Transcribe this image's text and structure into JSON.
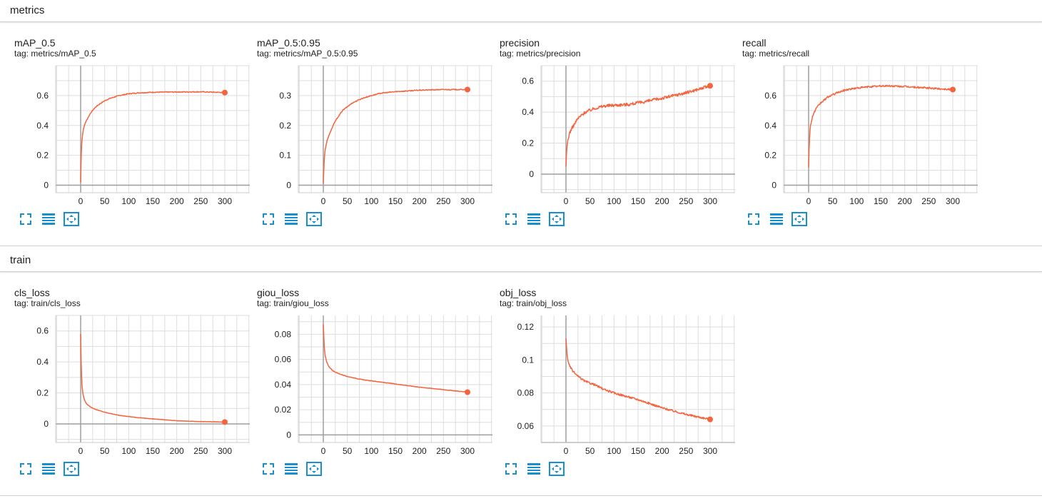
{
  "colors": {
    "line": "#f4643f",
    "grid": "#dddddd",
    "axis": "#9e9e9e",
    "icon": "#1a8fd0"
  },
  "icons": {
    "expand": "fullscreen-icon",
    "toggle_log": "lines-icon",
    "fit": "fit-domain-icon"
  },
  "sections": [
    {
      "name": "metrics",
      "charts": [
        0,
        1,
        2,
        3
      ]
    },
    {
      "name": "train",
      "charts": [
        4,
        5,
        6
      ]
    }
  ],
  "chart_data": [
    {
      "type": "line",
      "title": "mAP_0.5",
      "tag": "tag: metrics/mAP_0.5",
      "xlim": [
        -52,
        352
      ],
      "ylim": [
        -0.05,
        0.8
      ],
      "xticks": [
        0,
        50,
        100,
        150,
        200,
        250,
        300
      ],
      "yticks": [
        0,
        0.2,
        0.4,
        0.6
      ],
      "ytick_labels": [
        "0",
        "0.2",
        "0.4",
        "0.6"
      ],
      "noise": 0.003,
      "series": [
        {
          "name": "mAP_0.5",
          "x": [
            0,
            1,
            2,
            4,
            6,
            10,
            15,
            20,
            30,
            40,
            50,
            60,
            80,
            100,
            120,
            150,
            200,
            250,
            300
          ],
          "y": [
            0.02,
            0.18,
            0.27,
            0.34,
            0.38,
            0.42,
            0.45,
            0.48,
            0.52,
            0.545,
            0.565,
            0.58,
            0.6,
            0.612,
            0.618,
            0.622,
            0.624,
            0.625,
            0.62
          ]
        }
      ]
    },
    {
      "type": "line",
      "title": "mAP_0.5:0.95",
      "tag": "tag: metrics/mAP_0.5:0.95",
      "xlim": [
        -52,
        352
      ],
      "ylim": [
        -0.025,
        0.4
      ],
      "xticks": [
        0,
        50,
        100,
        150,
        200,
        250,
        300
      ],
      "yticks": [
        0,
        0.1,
        0.2,
        0.3
      ],
      "ytick_labels": [
        "0",
        "0.1",
        "0.2",
        "0.3"
      ],
      "noise": 0.0015,
      "series": [
        {
          "name": "mAP_0.5:0.95",
          "x": [
            0,
            1,
            2,
            4,
            8,
            15,
            25,
            40,
            60,
            80,
            100,
            120,
            150,
            200,
            250,
            300
          ],
          "y": [
            0.005,
            0.05,
            0.09,
            0.12,
            0.15,
            0.18,
            0.215,
            0.25,
            0.275,
            0.29,
            0.3,
            0.308,
            0.313,
            0.318,
            0.32,
            0.32
          ]
        }
      ]
    },
    {
      "type": "line",
      "title": "precision",
      "tag": "tag: metrics/precision",
      "xlim": [
        -52,
        352
      ],
      "ylim": [
        -0.12,
        0.7
      ],
      "xticks": [
        0,
        50,
        100,
        150,
        200,
        250,
        300
      ],
      "yticks": [
        0,
        0.2,
        0.4,
        0.6
      ],
      "ytick_labels": [
        "0",
        "0.2",
        "0.4",
        "0.6"
      ],
      "noise": 0.01,
      "series": [
        {
          "name": "precision",
          "x": [
            0,
            1,
            2,
            4,
            8,
            15,
            25,
            40,
            60,
            80,
            100,
            130,
            160,
            200,
            250,
            300
          ],
          "y": [
            0.05,
            0.12,
            0.17,
            0.22,
            0.27,
            0.31,
            0.36,
            0.4,
            0.425,
            0.44,
            0.445,
            0.45,
            0.465,
            0.49,
            0.525,
            0.57
          ]
        }
      ]
    },
    {
      "type": "line",
      "title": "recall",
      "tag": "tag: metrics/recall",
      "xlim": [
        -52,
        352
      ],
      "ylim": [
        -0.05,
        0.8
      ],
      "xticks": [
        0,
        50,
        100,
        150,
        200,
        250,
        300
      ],
      "yticks": [
        0,
        0.2,
        0.4,
        0.6
      ],
      "ytick_labels": [
        "0",
        "0.2",
        "0.4",
        "0.6"
      ],
      "noise": 0.006,
      "series": [
        {
          "name": "recall",
          "x": [
            0,
            1,
            2,
            4,
            8,
            15,
            25,
            40,
            60,
            80,
            100,
            130,
            160,
            200,
            250,
            300
          ],
          "y": [
            0.12,
            0.25,
            0.33,
            0.4,
            0.46,
            0.51,
            0.55,
            0.59,
            0.62,
            0.64,
            0.65,
            0.66,
            0.665,
            0.66,
            0.65,
            0.64
          ]
        }
      ]
    },
    {
      "type": "line",
      "title": "cls_loss",
      "tag": "tag: train/cls_loss",
      "xlim": [
        -52,
        352
      ],
      "ylim": [
        -0.12,
        0.7
      ],
      "xticks": [
        0,
        50,
        100,
        150,
        200,
        250,
        300
      ],
      "yticks": [
        0,
        0.2,
        0.4,
        0.6
      ],
      "ytick_labels": [
        "0",
        "0.2",
        "0.4",
        "0.6"
      ],
      "noise": 0.001,
      "series": [
        {
          "name": "cls_loss",
          "x": [
            0,
            1,
            2,
            3,
            5,
            8,
            12,
            20,
            30,
            50,
            80,
            120,
            160,
            200,
            250,
            300
          ],
          "y": [
            0.58,
            0.4,
            0.3,
            0.24,
            0.19,
            0.155,
            0.13,
            0.11,
            0.095,
            0.075,
            0.055,
            0.04,
            0.03,
            0.02,
            0.015,
            0.012
          ]
        }
      ]
    },
    {
      "type": "line",
      "title": "giou_loss",
      "tag": "tag: train/giou_loss",
      "xlim": [
        -52,
        352
      ],
      "ylim": [
        -0.006,
        0.095
      ],
      "xticks": [
        0,
        50,
        100,
        150,
        200,
        250,
        300
      ],
      "yticks": [
        0,
        0.02,
        0.04,
        0.06,
        0.08
      ],
      "ytick_labels": [
        "0",
        "0.02",
        "0.04",
        "0.06",
        "0.08"
      ],
      "noise": 0.0002,
      "series": [
        {
          "name": "giou_loss",
          "x": [
            0,
            1,
            2,
            4,
            7,
            12,
            20,
            30,
            50,
            80,
            100,
            150,
            200,
            250,
            300
          ],
          "y": [
            0.088,
            0.078,
            0.07,
            0.063,
            0.058,
            0.054,
            0.051,
            0.049,
            0.0465,
            0.044,
            0.043,
            0.0405,
            0.038,
            0.036,
            0.034
          ]
        }
      ]
    },
    {
      "type": "line",
      "title": "obj_loss",
      "tag": "tag: train/obj_loss",
      "xlim": [
        -52,
        352
      ],
      "ylim": [
        0.05,
        0.127
      ],
      "xticks": [
        0,
        50,
        100,
        150,
        200,
        250,
        300
      ],
      "yticks": [
        0.06,
        0.08,
        0.1,
        0.12
      ],
      "ytick_labels": [
        "0.06",
        "0.08",
        "0.1",
        "0.12"
      ],
      "noise": 0.0006,
      "series": [
        {
          "name": "obj_loss",
          "x": [
            0,
            1,
            2,
            4,
            8,
            15,
            25,
            40,
            60,
            80,
            100,
            150,
            200,
            250,
            300
          ],
          "y": [
            0.113,
            0.108,
            0.104,
            0.1,
            0.096,
            0.093,
            0.09,
            0.087,
            0.085,
            0.082,
            0.08,
            0.076,
            0.071,
            0.067,
            0.064
          ]
        }
      ]
    }
  ]
}
